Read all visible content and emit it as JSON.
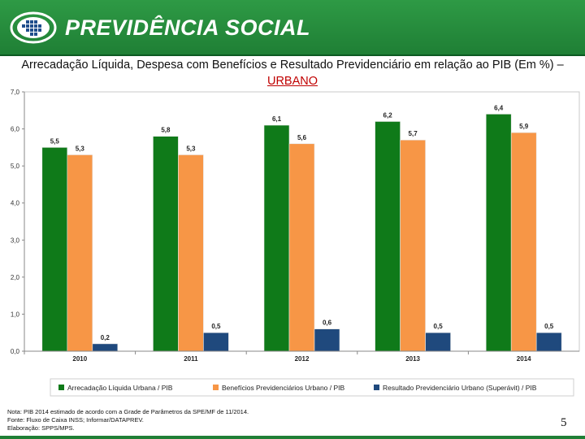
{
  "header": {
    "brand": "PREVIDÊNCIA SOCIAL",
    "colors": {
      "background": "#2e9a45",
      "text": "#ffffff",
      "logo_blue": "#1f4e8c"
    }
  },
  "slide": {
    "title_main": "Arrecadação Líquida, Despesa com Benefícios e Resultado Previdenciário em relação ao PIB (Em %) – ",
    "title_highlight": "URBANO",
    "notes": [
      "Nota: PIB 2014 estimado de acordo com a Grade de Parâmetros da SPE/MF de 11/2014.",
      "Fonte: Fluxo de Caixa INSS; Informar/DATAPREV.",
      "Elaboração: SPPS/MPS."
    ],
    "page_number": "5"
  },
  "chart_data": {
    "type": "bar",
    "title": "",
    "xlabel": "",
    "ylabel": "",
    "categories": [
      "2010",
      "2011",
      "2012",
      "2013",
      "2014"
    ],
    "ylim": [
      0,
      7
    ],
    "yticks": [
      0,
      1,
      2,
      3,
      4,
      5,
      6,
      7
    ],
    "ytick_labels": [
      "0,0",
      "1,0",
      "2,0",
      "3,0",
      "4,0",
      "5,0",
      "6,0",
      "7,0"
    ],
    "grid": false,
    "legend_position": "bottom",
    "series": [
      {
        "name": "Arrecadação Líquida Urbana / PIB",
        "color": "#0f7a19",
        "values": [
          5.5,
          5.8,
          6.1,
          6.2,
          6.4
        ],
        "labels": [
          "5,5",
          "5,8",
          "6,1",
          "6,2",
          "6,4"
        ]
      },
      {
        "name": "Benefícios Previdenciários Urbano / PIB",
        "color": "#f79646",
        "values": [
          5.3,
          5.3,
          5.6,
          5.7,
          5.9
        ],
        "labels": [
          "5,3",
          "5,3",
          "5,6",
          "5,7",
          "5,9"
        ]
      },
      {
        "name": "Resultado Previdenciário Urbano (Superávit) / PIB",
        "color": "#1f497d",
        "values": [
          0.2,
          0.5,
          0.6,
          0.5,
          0.5
        ],
        "labels": [
          "0,2",
          "0,5",
          "0,6",
          "0,5",
          "0,5"
        ]
      }
    ]
  }
}
